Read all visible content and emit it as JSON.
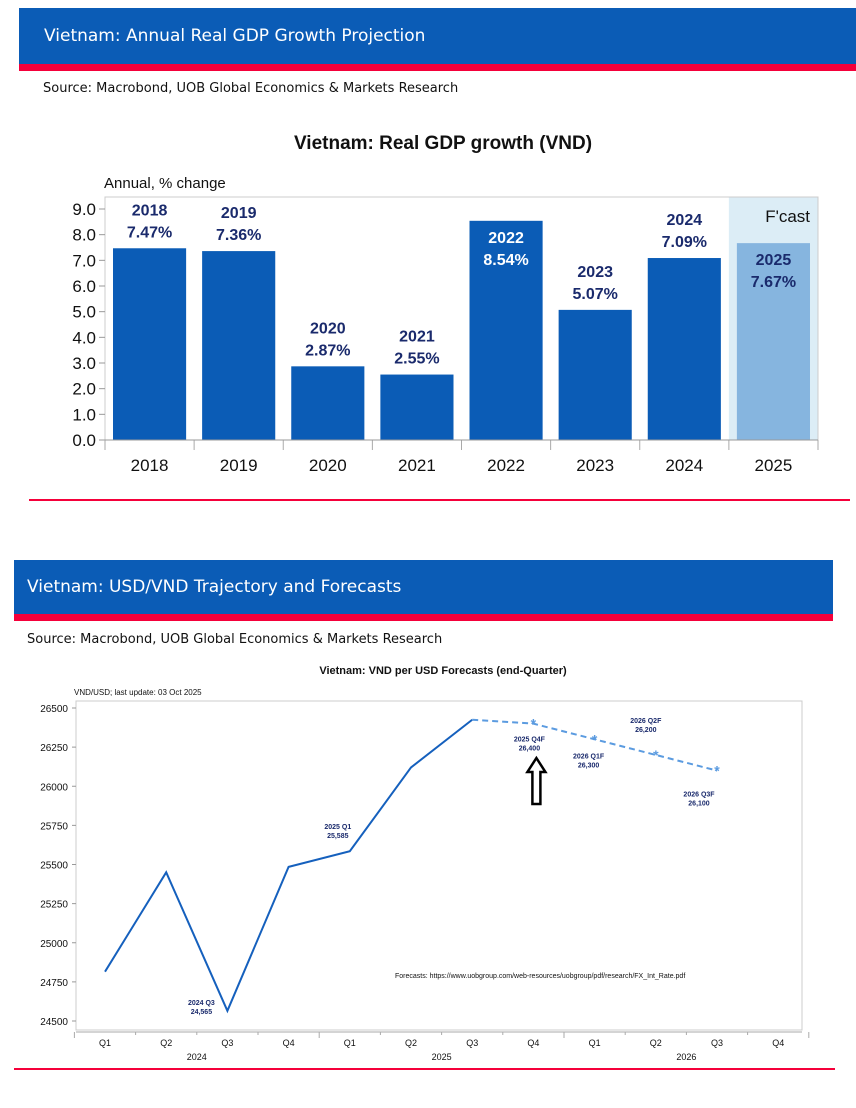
{
  "sections": [
    {
      "header": "Vietnam: Annual Real GDP Growth Projection",
      "source": "Source: Macrobond, UOB Global Economics & Markets Research"
    },
    {
      "header": "Vietnam: USD/VND Trajectory and Forecasts",
      "source": "Source: Macrobond, UOB Global Economics & Markets Research"
    }
  ],
  "colors": {
    "header_bg": "#0b5cb6",
    "accent_red": "#f5003a",
    "bar": "#0b5cb6",
    "forecast_bar": "#86b5df",
    "forecast_band": "#dcedf6",
    "line": "#1560bd",
    "forecast_line": "#5b9be0",
    "label_navy": "#1a2a6c"
  },
  "chart_data": [
    {
      "type": "bar",
      "title": "Vietnam: Real GDP growth (VND)",
      "ylabel": "Annual, % change",
      "ylim": [
        0,
        9
      ],
      "yticks": [
        "0.0",
        "1.0",
        "2.0",
        "3.0",
        "4.0",
        "5.0",
        "6.0",
        "7.0",
        "8.0",
        "9.0"
      ],
      "categories": [
        "2018",
        "2019",
        "2020",
        "2021",
        "2022",
        "2023",
        "2024",
        "2025"
      ],
      "values": [
        7.47,
        7.36,
        2.87,
        2.55,
        8.54,
        5.07,
        7.09,
        7.67
      ],
      "data_labels": [
        [
          "2018",
          "7.47%"
        ],
        [
          "2019",
          "7.36%"
        ],
        [
          "2020",
          "2.87%"
        ],
        [
          "2021",
          "2.55%"
        ],
        [
          "2022",
          "8.54%"
        ],
        [
          "2023",
          "5.07%"
        ],
        [
          "2024",
          "7.09%"
        ],
        [
          "2025",
          "7.67%"
        ]
      ],
      "forecast_from": "2025",
      "forecast_label": "F'cast",
      "grid": false
    },
    {
      "type": "line",
      "title": "Vietnam: VND per USD Forecasts (end-Quarter)",
      "ylabel": "VND/USD; last update: 03 Oct 2025",
      "ylim": [
        24500,
        26500
      ],
      "yticks": [
        "24500",
        "24750",
        "25000",
        "25250",
        "25500",
        "25750",
        "26000",
        "26250",
        "26500"
      ],
      "x_quarters": [
        "Q1",
        "Q2",
        "Q3",
        "Q4",
        "Q1",
        "Q2",
        "Q3",
        "Q4",
        "Q1",
        "Q2",
        "Q3",
        "Q4"
      ],
      "x_years": [
        "2024",
        "2025",
        "2026"
      ],
      "series": [
        {
          "style": "solid",
          "x": [
            0,
            1,
            2,
            3,
            4,
            5,
            6
          ],
          "values": [
            24815,
            25450,
            24565,
            25485,
            25585,
            26120,
            26425
          ]
        },
        {
          "style": "dashed",
          "markers": "asterisk",
          "x": [
            6,
            7,
            8,
            9,
            10
          ],
          "values": [
            26425,
            26400,
            26300,
            26200,
            26100
          ]
        }
      ],
      "annotations": [
        {
          "x": 2,
          "lines": [
            "2024 Q3",
            "24,565"
          ]
        },
        {
          "x": 4,
          "lines": [
            "2025 Q1",
            "25,585"
          ]
        },
        {
          "x": 7,
          "lines": [
            "2025 Q4F",
            "26,400"
          ]
        },
        {
          "x": 8,
          "lines": [
            "2026 Q1F",
            "26,300"
          ]
        },
        {
          "x": 9,
          "lines": [
            "2026 Q2F",
            "26,200"
          ]
        },
        {
          "x": 10,
          "lines": [
            "2026 Q3F",
            "26,100"
          ]
        }
      ],
      "note": "Forecasts: https://www.uobgroup.com/web-resources/uobgroup/pdf/research/FX_Int_Rate.pdf",
      "arrow_at": 7,
      "grid": false
    }
  ]
}
